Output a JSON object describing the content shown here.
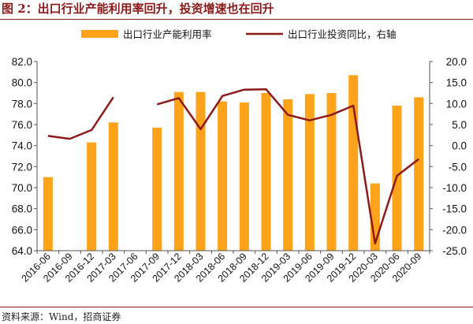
{
  "figure_title": "图 2：出口行业产能利用率回升，投资增速也在回升",
  "source_note": "资料来源：Wind，招商证券",
  "chart_data": {
    "type": "bar",
    "categories": [
      "2016-06",
      "2016-09",
      "2016-12",
      "2017-03",
      "2017-06",
      "2017-09",
      "2017-12",
      "2018-03",
      "2018-06",
      "2018-09",
      "2018-12",
      "2019-03",
      "2019-06",
      "2019-09",
      "2019-12",
      "2020-03",
      "2020-06",
      "2020-09"
    ],
    "series": [
      {
        "name": "出口行业产能利用率",
        "type": "bar",
        "axis": "left",
        "color": "#FFA31A",
        "values": [
          71.0,
          null,
          74.3,
          76.2,
          null,
          75.7,
          79.1,
          79.1,
          78.2,
          78.1,
          79.0,
          78.4,
          78.9,
          79.0,
          80.7,
          70.4,
          77.8,
          78.6
        ]
      },
      {
        "name": "出口行业投资同比，右轴",
        "type": "line",
        "axis": "right",
        "color": "#8B1A1A",
        "values": [
          2.3,
          1.6,
          3.7,
          11.5,
          null,
          9.8,
          11.3,
          3.9,
          11.8,
          13.3,
          13.4,
          7.3,
          6.0,
          7.3,
          9.5,
          -23.3,
          -7.2,
          -3.2
        ]
      }
    ],
    "ylim": [
      64.0,
      82.0
    ],
    "yticks": [
      "64.0",
      "66.0",
      "68.0",
      "70.0",
      "72.0",
      "74.0",
      "76.0",
      "78.0",
      "80.0",
      "82.0"
    ],
    "y2lim": [
      -25.0,
      20.0
    ],
    "y2ticks": [
      "-25.0",
      "-20.0",
      "-15.0",
      "-10.0",
      "-5.0",
      "0.0",
      "5.0",
      "10.0",
      "15.0",
      "20.0"
    ],
    "legend_position": "top",
    "grid": false
  }
}
